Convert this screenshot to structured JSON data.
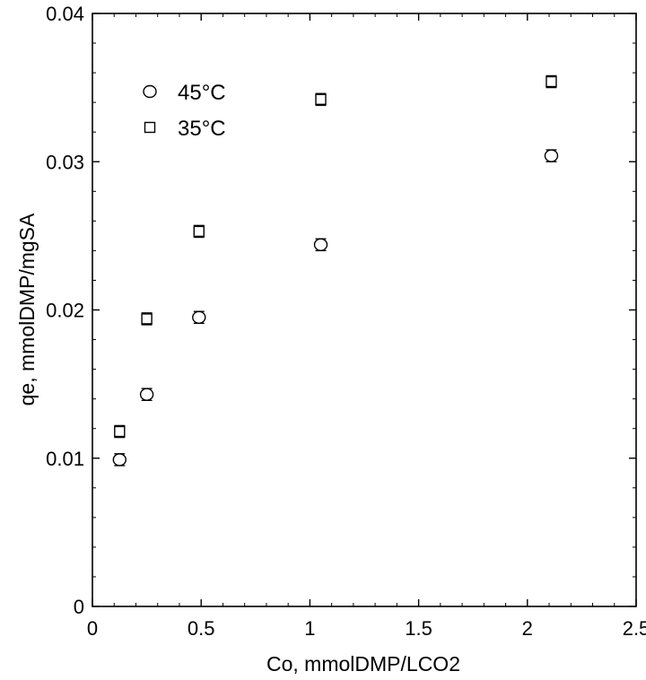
{
  "chart_data": {
    "type": "scatter",
    "title": "",
    "xlabel": "Co, mmolDMP/LCO2",
    "ylabel": "qe, mmolDMP/mgSA",
    "xlim": [
      0,
      2.5
    ],
    "ylim": [
      0,
      0.04
    ],
    "x_ticks": [
      0,
      0.5,
      1,
      1.5,
      2,
      2.5
    ],
    "x_tick_labels": [
      "0",
      "0.5",
      "1",
      "1.5",
      "2",
      "2.5"
    ],
    "y_ticks": [
      0,
      0.01,
      0.02,
      0.03,
      0.04
    ],
    "y_tick_labels": [
      "0",
      "0.01",
      "0.02",
      "0.03",
      "0.04"
    ],
    "grid": false,
    "legend_position": "top-left",
    "series": [
      {
        "name": "45°C",
        "marker": "circle",
        "color": "#000000",
        "points": [
          {
            "x": 0.125,
            "y": 0.0099,
            "err": 0.0004
          },
          {
            "x": 0.25,
            "y": 0.0143,
            "err": 0.0004
          },
          {
            "x": 0.49,
            "y": 0.0195,
            "err": 0.0004
          },
          {
            "x": 1.05,
            "y": 0.0244,
            "err": 0.0004
          },
          {
            "x": 2.11,
            "y": 0.0304,
            "err": 0.0004
          }
        ]
      },
      {
        "name": "35°C",
        "marker": "square",
        "color": "#000000",
        "points": [
          {
            "x": 0.125,
            "y": 0.0118,
            "err": 0.0004
          },
          {
            "x": 0.25,
            "y": 0.0194,
            "err": 0.0004
          },
          {
            "x": 0.49,
            "y": 0.0253,
            "err": 0.0004
          },
          {
            "x": 1.05,
            "y": 0.0342,
            "err": 0.0004
          },
          {
            "x": 2.11,
            "y": 0.0354,
            "err": 0.0004
          }
        ]
      }
    ]
  }
}
